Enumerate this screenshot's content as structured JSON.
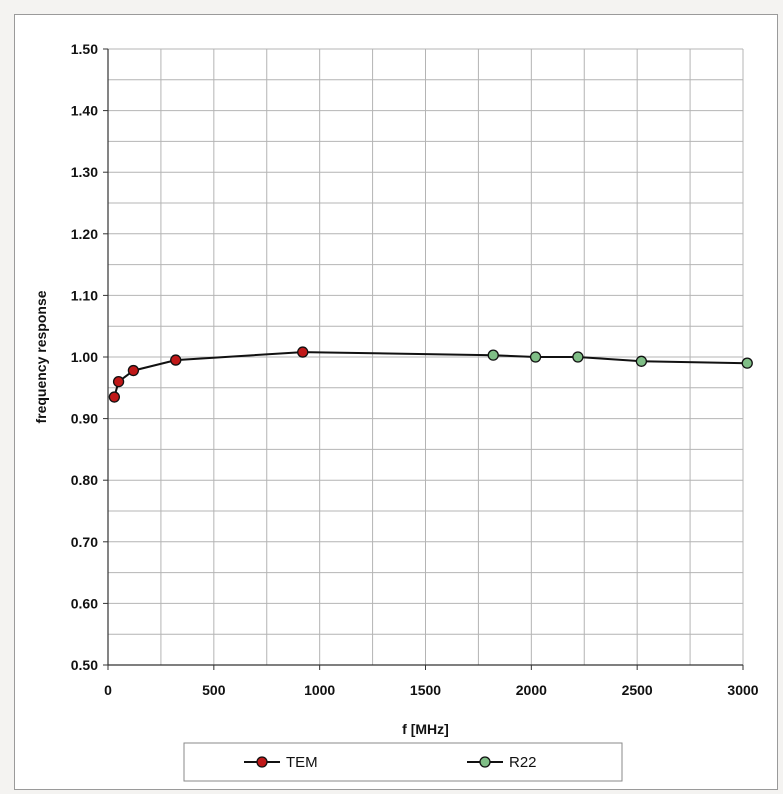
{
  "chart_data": {
    "type": "line",
    "xlabel": "f [MHz]",
    "ylabel": "frequency response",
    "xlim": [
      0,
      3000
    ],
    "ylim": [
      0.5,
      1.5
    ],
    "x_ticks": [
      0,
      500,
      1000,
      1500,
      2000,
      2500,
      3000
    ],
    "x_tick_labels": [
      "0",
      "500",
      "1000",
      "1500",
      "2000",
      "2500",
      "3000"
    ],
    "y_ticks": [
      0.5,
      0.6,
      0.7,
      0.8,
      0.9,
      1.0,
      1.1,
      1.2,
      1.3,
      1.4,
      1.5
    ],
    "y_tick_labels": [
      "0.50",
      "0.60",
      "0.70",
      "0.80",
      "0.90",
      "1.00",
      "1.10",
      "1.20",
      "1.30",
      "1.40",
      "1.50"
    ],
    "grid": true,
    "minor_grid": true,
    "legend_position": "bottom",
    "series": [
      {
        "name": "TEM",
        "color": "#c01818",
        "x": [
          30,
          50,
          120,
          320,
          920
        ],
        "y": [
          0.935,
          0.96,
          0.978,
          0.995,
          1.008
        ]
      },
      {
        "name": "R22",
        "color": "#7fbe86",
        "x": [
          1820,
          2020,
          2220,
          2520,
          3020
        ],
        "y": [
          1.003,
          1.0,
          1.0,
          0.993,
          0.99
        ]
      }
    ]
  }
}
